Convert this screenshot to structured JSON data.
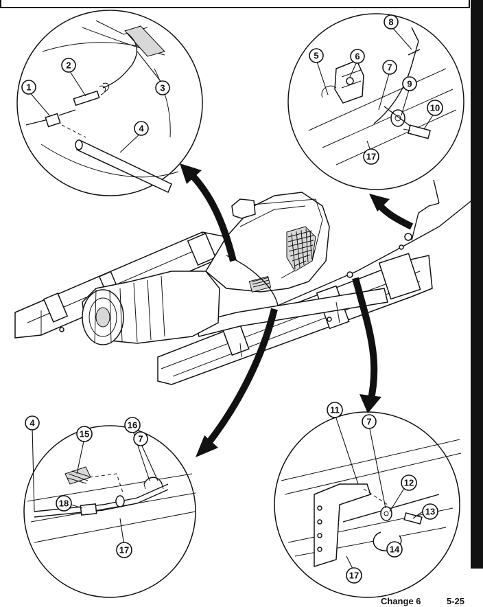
{
  "figure": {
    "callouts": [
      "1",
      "2",
      "3",
      "4",
      "5",
      "6",
      "7",
      "8",
      "9",
      "10",
      "11",
      "12",
      "13",
      "14",
      "15",
      "16",
      "17",
      "18"
    ],
    "colors": {
      "ink": "#111111",
      "paper": "#ffffff",
      "shade": "#d8d8d8"
    }
  },
  "footer": {
    "change": "Change 6",
    "page": "5-25"
  }
}
